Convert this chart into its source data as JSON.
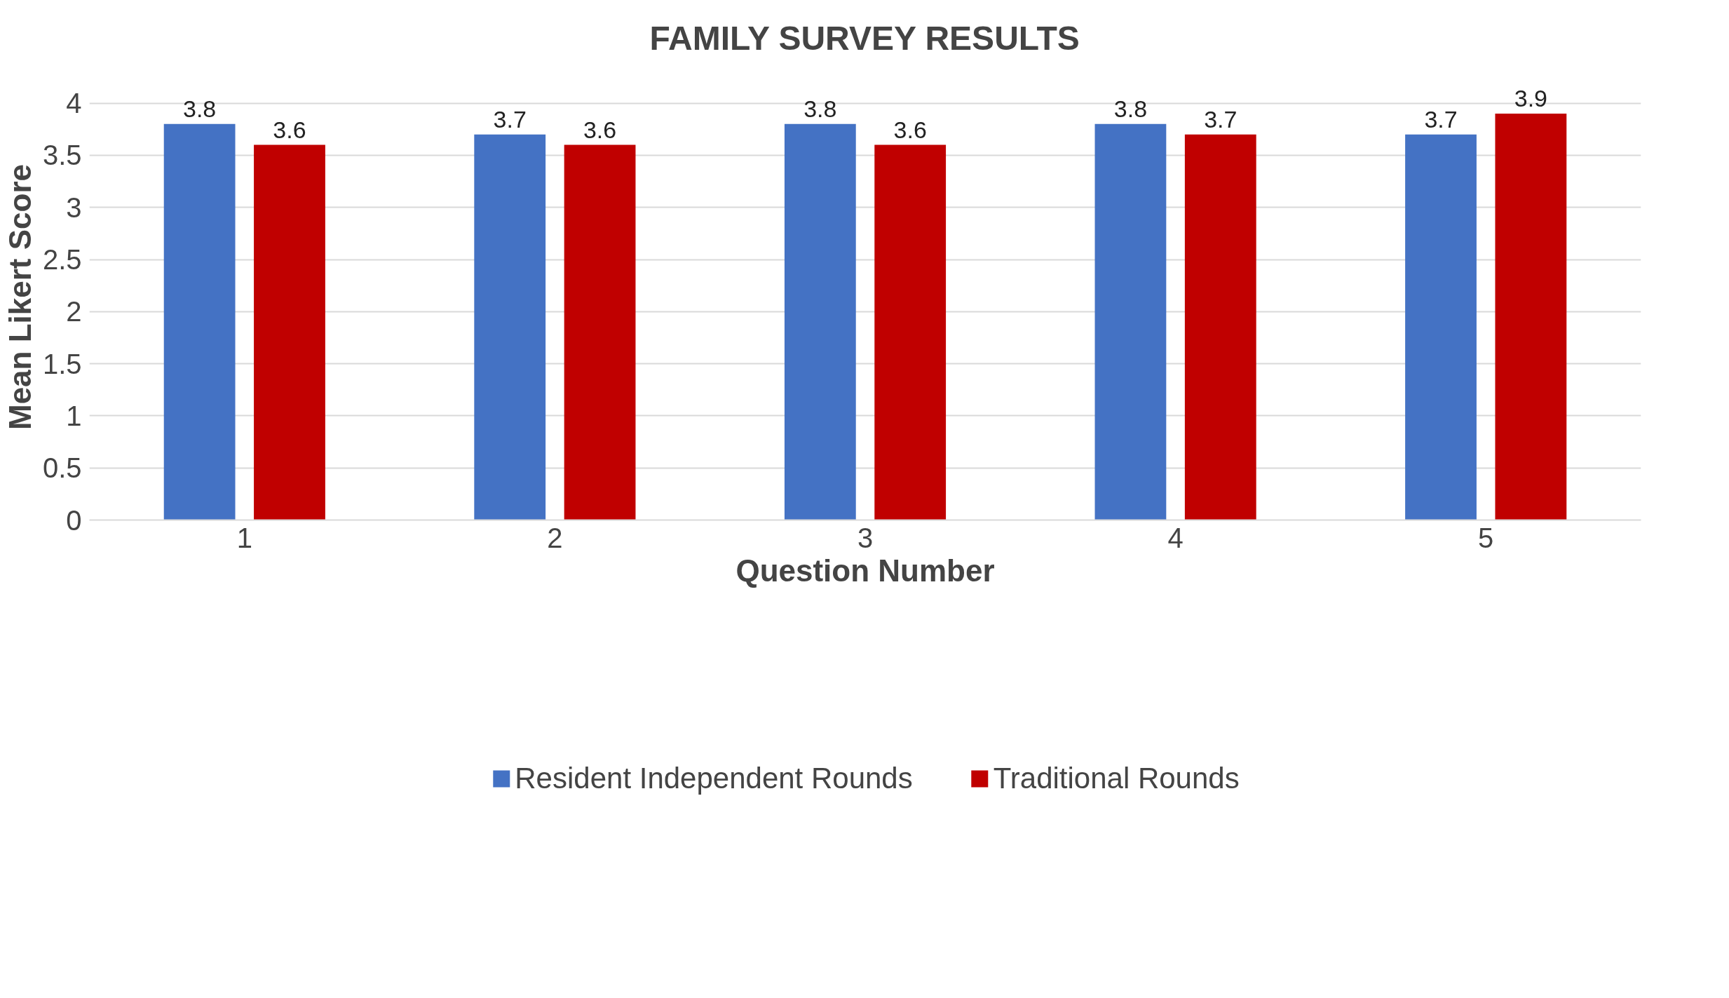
{
  "chart_data": {
    "type": "bar",
    "title": "FAMILY SURVEY RESULTS",
    "xlabel": "Question Number",
    "ylabel": "Mean Likert Score",
    "categories": [
      "1",
      "2",
      "3",
      "4",
      "5"
    ],
    "series": [
      {
        "name": "Resident Independent Rounds",
        "color": "#4472c4",
        "values": [
          3.8,
          3.7,
          3.8,
          3.8,
          3.7
        ]
      },
      {
        "name": "Traditional Rounds",
        "color": "#c00000",
        "values": [
          3.6,
          3.6,
          3.6,
          3.7,
          3.9
        ]
      }
    ],
    "ylim": [
      0,
      4
    ],
    "yticks": [
      0,
      0.5,
      1,
      1.5,
      2,
      2.5,
      3,
      3.5,
      4
    ],
    "grid": "y",
    "legend": "bottom",
    "data_labels": true
  }
}
